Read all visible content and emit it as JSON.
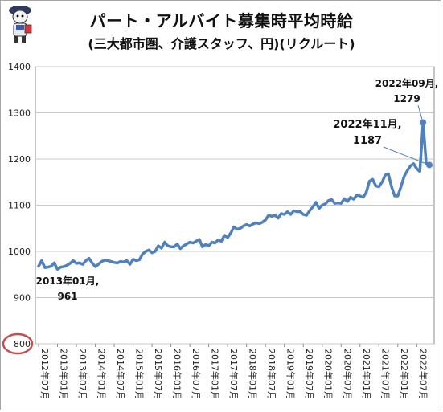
{
  "chart_data": {
    "type": "line",
    "title": "パート・アルバイト募集時平均時給",
    "subtitle": "(三大都市圏、介護スタッフ、円)(リクルート)",
    "ylim": [
      800,
      1400
    ],
    "yticks": [
      800,
      900,
      1000,
      1100,
      1200,
      1300,
      1400
    ],
    "grid": true,
    "x_tick_labels": [
      "2012年07月",
      "2013年01月",
      "2013年07月",
      "2014年01月",
      "2014年07月",
      "2015年01月",
      "2015年07月",
      "2016年01月",
      "2016年07月",
      "2017年01月",
      "2017年07月",
      "2018年01月",
      "2018年07月",
      "2019年01月",
      "2019年07月",
      "2020年01月",
      "2020年07月",
      "2021年01月",
      "2021年07月",
      "2022年01月",
      "2022年07月"
    ],
    "series": [
      {
        "name": "",
        "start": "2012年07月",
        "interval": "1 month",
        "color": "#4f81bd",
        "values": [
          968,
          980,
          965,
          966,
          968,
          975,
          961,
          966,
          967,
          970,
          974,
          980,
          974,
          975,
          972,
          980,
          985,
          975,
          967,
          972,
          978,
          981,
          980,
          978,
          976,
          975,
          978,
          977,
          980,
          972,
          983,
          980,
          982,
          994,
          1000,
          1003,
          997,
          1000,
          1012,
          1007,
          1020,
          1012,
          1010,
          1010,
          1016,
          1006,
          1012,
          1016,
          1020,
          1018,
          1022,
          1026,
          1010,
          1015,
          1012,
          1020,
          1018,
          1025,
          1022,
          1035,
          1030,
          1040,
          1053,
          1048,
          1050,
          1055,
          1058,
          1055,
          1059,
          1062,
          1060,
          1063,
          1068,
          1078,
          1076,
          1078,
          1072,
          1082,
          1080,
          1086,
          1080,
          1088,
          1086,
          1086,
          1080,
          1078,
          1088,
          1096,
          1106,
          1093,
          1100,
          1103,
          1110,
          1112,
          1104,
          1105,
          1104,
          1114,
          1108,
          1117,
          1113,
          1122,
          1120,
          1117,
          1128,
          1152,
          1156,
          1142,
          1140,
          1150,
          1165,
          1168,
          1140,
          1120,
          1120,
          1140,
          1162,
          1175,
          1185,
          1190,
          1179,
          1173,
          1279,
          1190,
          1187
        ]
      }
    ],
    "annotations": [
      {
        "date": "2013年01月",
        "label": "2013年01月,",
        "value_label": "961",
        "value": 961
      },
      {
        "date": "2022年09月",
        "label": "2022年09月,",
        "value_label": "1279",
        "value": 1279
      },
      {
        "date": "2022年11月",
        "label": "2022年11月,",
        "value_label": "1187",
        "value": 1187
      }
    ],
    "highlight": {
      "target": "y-axis baseline 800",
      "color": "#c0504d"
    }
  }
}
